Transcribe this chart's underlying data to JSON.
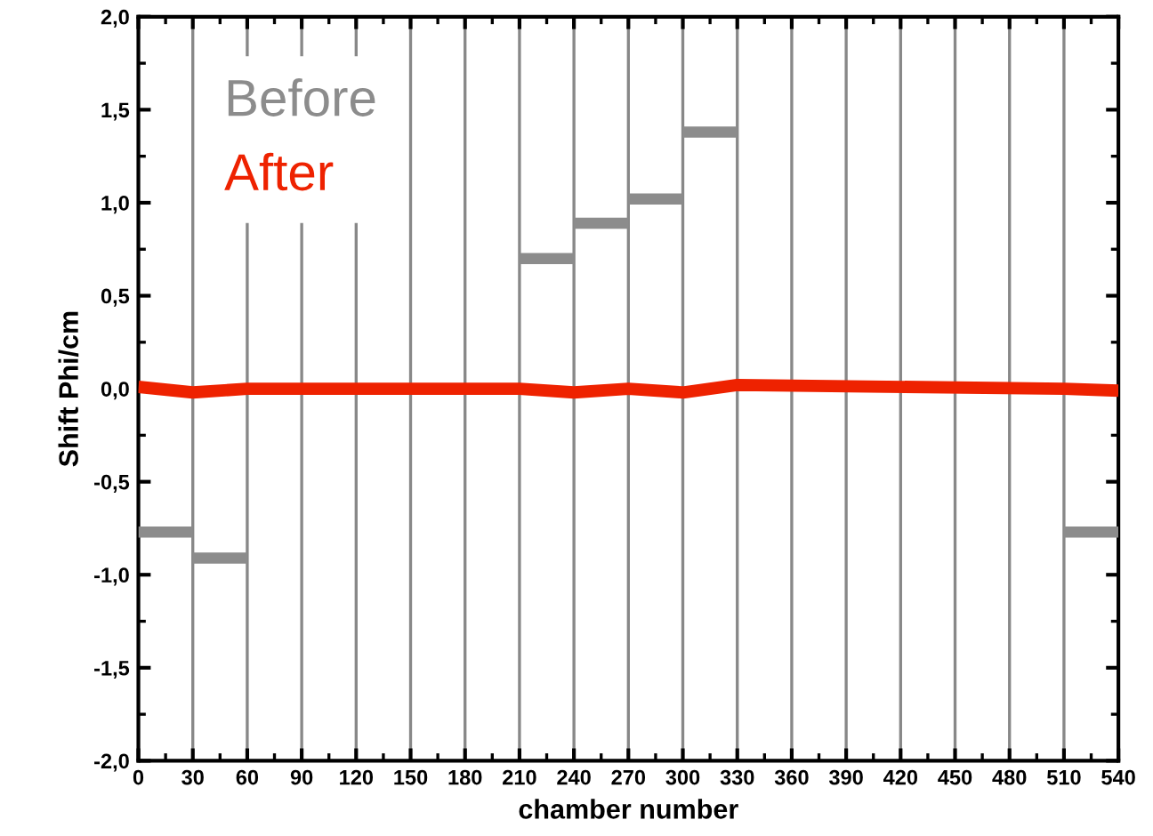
{
  "chart_data": {
    "type": "line",
    "xlabel": "chamber number",
    "ylabel": "Shift Phi/cm",
    "grid": "x",
    "legend": "top left",
    "marker": "none",
    "line_style": "solid",
    "xlim": [
      0,
      540
    ],
    "xticks": [
      0,
      30,
      60,
      90,
      120,
      150,
      180,
      210,
      240,
      270,
      300,
      330,
      360,
      390,
      420,
      450,
      480,
      510,
      540
    ],
    "ylim": [
      -2,
      2
    ],
    "yticks": [
      {
        "value": -2,
        "label": "-2,0"
      },
      {
        "value": -1.5,
        "label": "-1,5"
      },
      {
        "value": -1,
        "label": "-1,0"
      },
      {
        "value": -0.5,
        "label": "-0,5"
      },
      {
        "value": 0,
        "label": "0,0"
      },
      {
        "value": 0.5,
        "label": "0,5"
      },
      {
        "value": 1,
        "label": "1,0"
      },
      {
        "value": 1.5,
        "label": "1,5"
      },
      {
        "value": 2,
        "label": "2,0"
      }
    ],
    "series": [
      {
        "name": "Before",
        "color": "#8c8c8c",
        "x": [
          0,
          30,
          null,
          30,
          60,
          null,
          210,
          240,
          null,
          240,
          270,
          null,
          270,
          300,
          null,
          300,
          330,
          null,
          510,
          540
        ],
        "values": [
          -0.77,
          -0.77,
          null,
          -0.91,
          -0.91,
          null,
          0.7,
          0.7,
          null,
          0.89,
          0.89,
          null,
          1.02,
          1.02,
          null,
          1.38,
          1.38,
          null,
          -0.77,
          -0.77
        ]
      },
      {
        "name": "After",
        "color": "#ee2200",
        "x": [
          0,
          30,
          60,
          210,
          240,
          270,
          300,
          330,
          510,
          540
        ],
        "values": [
          0.01,
          -0.02,
          0.0,
          0.0,
          -0.02,
          0.0,
          -0.02,
          0.02,
          0.0,
          -0.01
        ]
      }
    ]
  }
}
